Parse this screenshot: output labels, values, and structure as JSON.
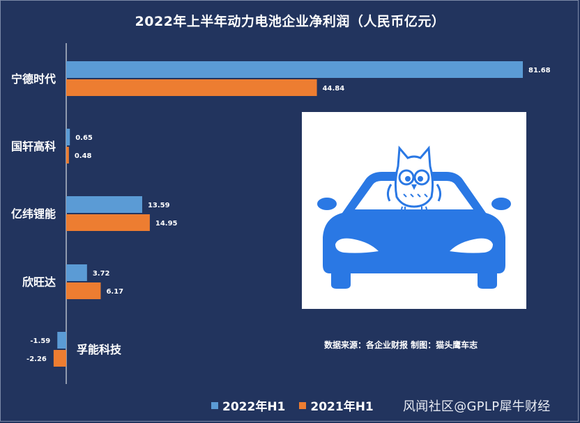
{
  "colors": {
    "background": "#22345e",
    "series_2022": "#5b9bd5",
    "series_2021": "#ed7d31",
    "logo_blue": "#2a78e4"
  },
  "chart_data": {
    "type": "bar",
    "orientation": "horizontal",
    "title": "2022年上半年动力电池企业净利润（人民币亿元）",
    "categories": [
      "宁德时代",
      "国轩高科",
      "亿纬锂能",
      "欣旺达",
      "孚能科技"
    ],
    "series": [
      {
        "name": "2022年H1",
        "values": [
          81.68,
          0.65,
          13.59,
          3.72,
          -1.59
        ]
      },
      {
        "name": "2021年H1",
        "values": [
          44.84,
          0.48,
          14.95,
          6.17,
          -2.26
        ]
      }
    ],
    "xlim": [
      -3,
      81.68
    ],
    "grid": false,
    "legend_position": "bottom"
  },
  "source_note": "数据来源：各企业财报  制图：猫头鹰车志",
  "watermark": "风闻社区@GPLP犀牛财经",
  "logo_icon": "owl-on-car-icon"
}
